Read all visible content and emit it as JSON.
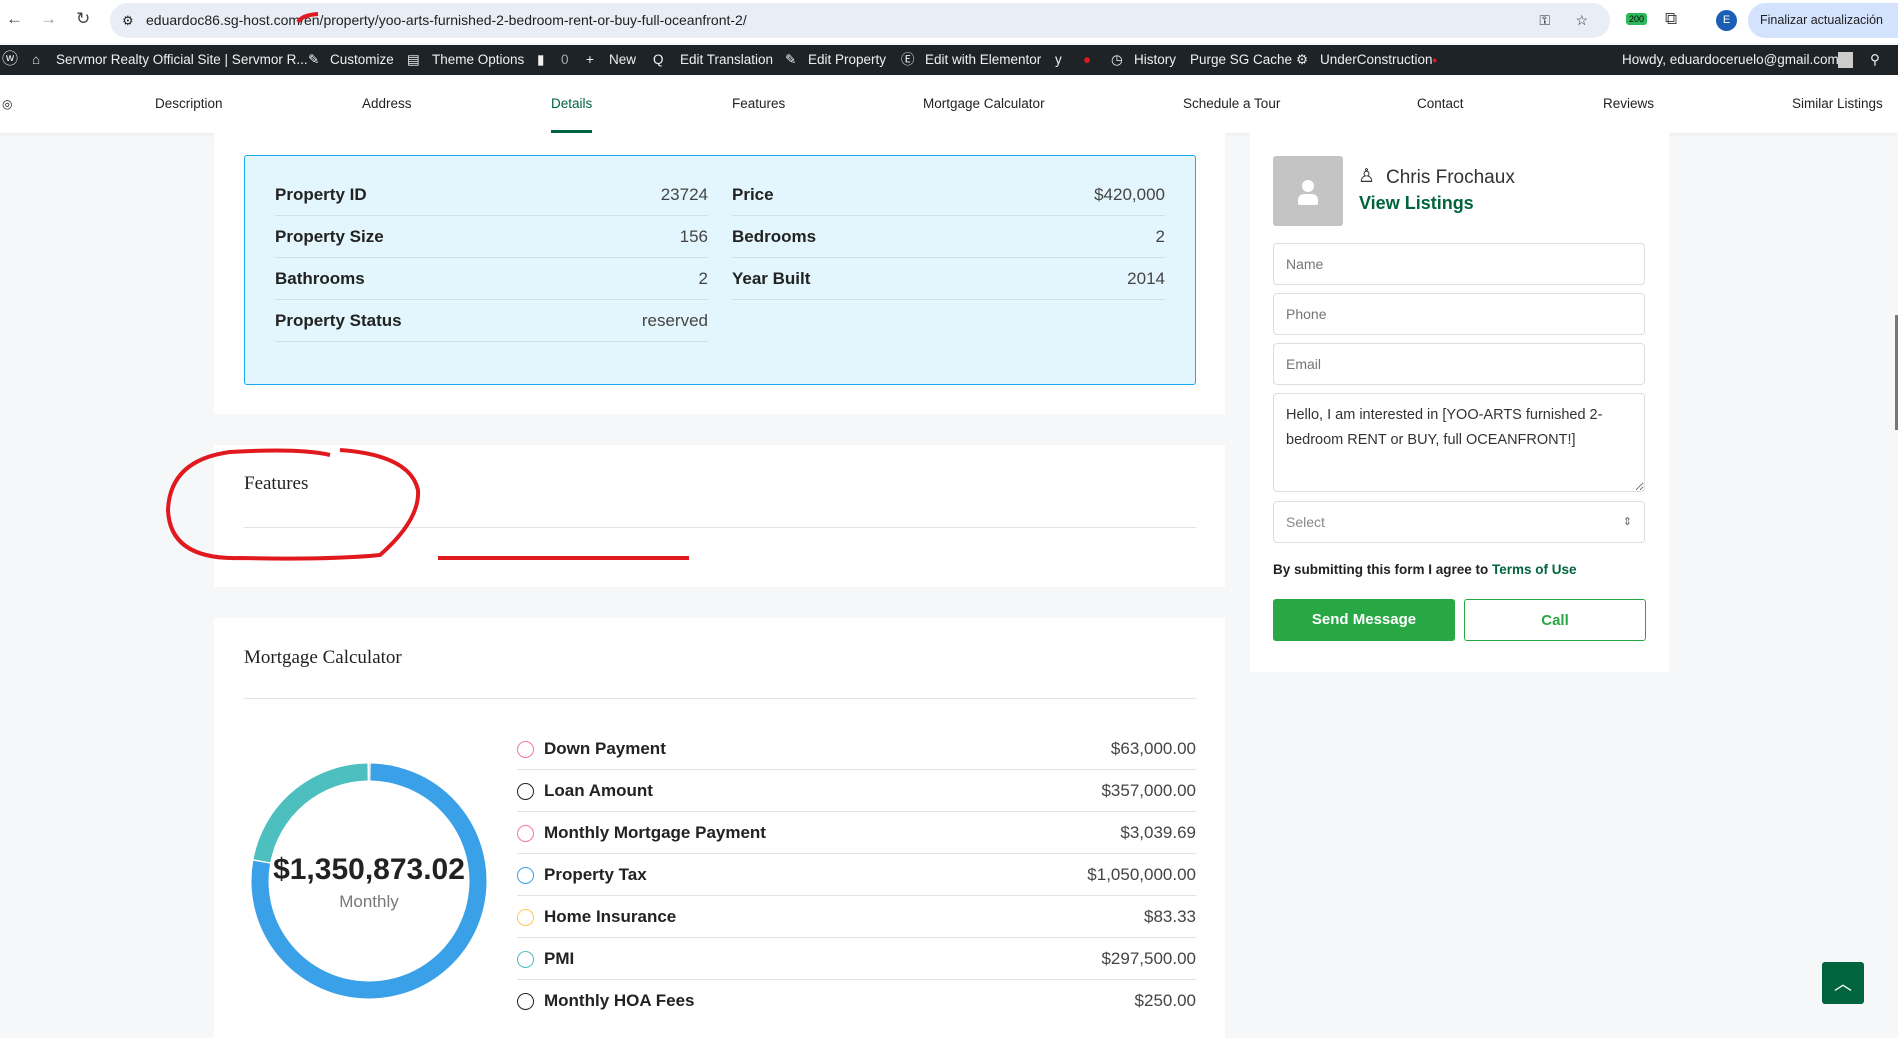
{
  "browser": {
    "url": "eduardoc86.sg-host.com/en/property/yoo-arts-furnished-2-bedroom-rent-or-buy-full-oceanfront-2/",
    "extension_badge": "200",
    "profile_initial": "E",
    "update_button": "Finalizar actualización"
  },
  "admin_bar": {
    "items": [
      "Servmor Realty Official Site | Servmor R...",
      "Customize",
      "Theme Options",
      "0",
      "New",
      "Edit Translation",
      "Edit Property",
      "Edit with Elementor",
      "History",
      "Purge SG Cache",
      "UnderConstruction"
    ],
    "howdy": "Howdy, eduardoceruelo@gmail.com"
  },
  "tabs": [
    {
      "label": "Description"
    },
    {
      "label": "Address"
    },
    {
      "label": "Details",
      "active": true
    },
    {
      "label": "Features"
    },
    {
      "label": "Mortgage Calculator"
    },
    {
      "label": "Schedule a Tour"
    },
    {
      "label": "Contact"
    },
    {
      "label": "Reviews"
    },
    {
      "label": "Similar Listings"
    }
  ],
  "details": {
    "left": [
      {
        "k": "Property ID",
        "v": "23724"
      },
      {
        "k": "Property Size",
        "v": "156"
      },
      {
        "k": "Bathrooms",
        "v": "2"
      },
      {
        "k": "Property Status",
        "v": "reserved"
      }
    ],
    "right": [
      {
        "k": "Price",
        "v": "$420,000"
      },
      {
        "k": "Bedrooms",
        "v": "2"
      },
      {
        "k": "Year Built",
        "v": "2014"
      }
    ]
  },
  "features": {
    "title": "Features"
  },
  "mortgage": {
    "title": "Mortgage Calculator",
    "total": "$1,350,873.02",
    "period": "Monthly",
    "rows": [
      {
        "label": "Down Payment",
        "value": "$63,000.00",
        "color": "#f27a94"
      },
      {
        "label": "Loan Amount",
        "value": "$357,000.00",
        "color": "#222222"
      },
      {
        "label": "Monthly Mortgage Payment",
        "value": "$3,039.69",
        "color": "#f27a94",
        "amount": 3039.69
      },
      {
        "label": "Property Tax",
        "value": "$1,050,000.00",
        "color": "#3aa0e8",
        "amount": 1050000
      },
      {
        "label": "Home Insurance",
        "value": "$83.33",
        "color": "#ffc65c",
        "amount": 83.33
      },
      {
        "label": "PMI",
        "value": "$297,500.00",
        "color": "#4dbfbf",
        "amount": 297500
      },
      {
        "label": "Monthly HOA Fees",
        "value": "$250.00",
        "color": "#222222",
        "amount": 250
      }
    ]
  },
  "agent": {
    "name": "Chris Frochaux",
    "view_listings": "View Listings"
  },
  "form": {
    "name_placeholder": "Name",
    "phone_placeholder": "Phone",
    "email_placeholder": "Email",
    "message": "Hello, I am interested in [YOO-ARTS furnished 2-bedroom RENT or BUY, full OCEANFRONT!]",
    "select": "Select",
    "terms_prefix": "By submitting this form I agree to ",
    "terms_link": "Terms of Use",
    "send": "Send Message",
    "call": "Call"
  },
  "colors": {
    "brand": "#00653e",
    "button_green": "#28a745",
    "details_bg": "#e3f6fd",
    "annotation": "#e0191e"
  }
}
